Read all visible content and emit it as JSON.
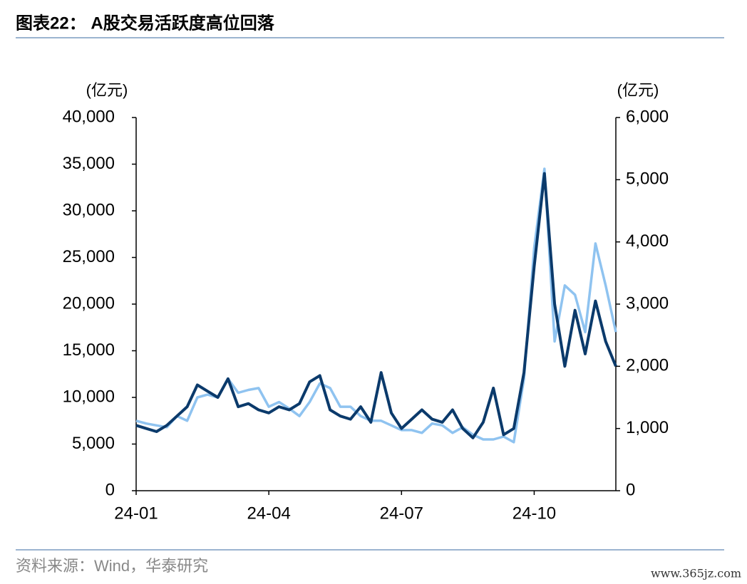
{
  "title": "图表22：  A股交易活跃度高位回落",
  "source": "资料来源：Wind，华泰研究",
  "watermark": "www.365jz.com",
  "chart_data": {
    "type": "line",
    "y_label": "(亿元)",
    "y2_label": "(亿元)",
    "categories": [
      "24-01",
      null,
      null,
      null,
      null,
      null,
      null,
      null,
      null,
      null,
      null,
      null,
      null,
      "24-04",
      null,
      null,
      null,
      null,
      null,
      null,
      null,
      null,
      null,
      null,
      null,
      null,
      "24-07",
      null,
      null,
      null,
      null,
      null,
      null,
      null,
      null,
      null,
      null,
      null,
      null,
      "24-10",
      null,
      null,
      null,
      null,
      null,
      null,
      null,
      null
    ],
    "series": [
      {
        "color": "#8fc3f0",
        "values": [
          7500,
          7200,
          7000,
          6800,
          8000,
          7500,
          10000,
          10300,
          10000,
          12000,
          10500,
          10800,
          11000,
          9000,
          9500,
          8800,
          8000,
          9500,
          11500,
          11000,
          9000,
          9000,
          8000,
          7500,
          7500,
          7000,
          6500,
          6500,
          6200,
          7200,
          7000,
          6200,
          6800,
          6000,
          5500,
          5500,
          5800,
          5200,
          12000,
          26000,
          34500,
          16000,
          22000,
          21000,
          17000,
          26500,
          22000,
          17000
        ]
      },
      {
        "color": "#0b3a6b",
        "axis": "y2",
        "values": [
          1050,
          1000,
          950,
          1050,
          1200,
          1350,
          1700,
          1600,
          1500,
          1800,
          1350,
          1400,
          1300,
          1250,
          1350,
          1300,
          1400,
          1750,
          1850,
          1300,
          1200,
          1150,
          1350,
          1100,
          1900,
          1250,
          1000,
          1150,
          1300,
          1150,
          1100,
          1300,
          1000,
          850,
          1100,
          1650,
          900,
          1000,
          1900,
          3600,
          5100,
          3000,
          2000,
          2900,
          2200,
          3050,
          2400,
          2000
        ]
      }
    ],
    "ylim": [
      0,
      40000
    ],
    "yticks": [
      0,
      {
        "value": 5000,
        "label": "5,000"
      },
      {
        "value": 10000,
        "label": "10,000"
      },
      {
        "value": 15000,
        "label": "15,000"
      },
      {
        "value": 20000,
        "label": "20,000"
      },
      {
        "value": 25000,
        "label": "25,000"
      },
      {
        "value": 30000,
        "label": "30,000"
      },
      {
        "value": 35000,
        "label": "35,000"
      },
      {
        "value": 40000,
        "label": "40,000"
      }
    ],
    "y2lim": [
      0,
      6000
    ],
    "y2ticks": [
      0,
      {
        "value": 1000,
        "label": "1,000"
      },
      {
        "value": 2000,
        "label": "2,000"
      },
      {
        "value": 3000,
        "label": "3,000"
      },
      {
        "value": 4000,
        "label": "4,000"
      },
      {
        "value": 5000,
        "label": "5,000"
      },
      {
        "value": 6000,
        "label": "6,000"
      }
    ]
  }
}
